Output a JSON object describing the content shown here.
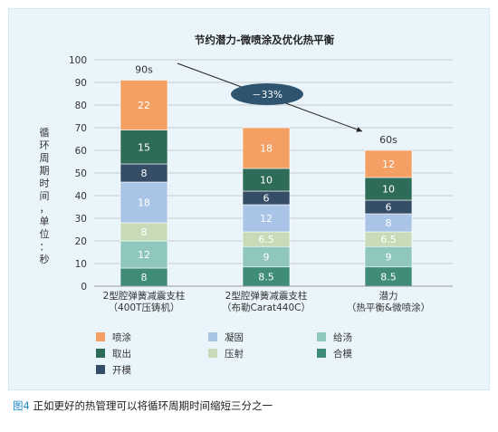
{
  "caption": {
    "fig_label": "图4",
    "text": "正如更好的热管理可以将循环周期时间缩短三分之一"
  },
  "chart_data": {
    "type": "bar",
    "stacked": true,
    "title": "节约潜力-微喷涂及优化热平衡",
    "ylabel": "循环周期时间，单位：秒",
    "ylim": [
      0,
      100
    ],
    "yticks": [
      0,
      10,
      20,
      30,
      40,
      50,
      60,
      70,
      80,
      90,
      100
    ],
    "grid": true,
    "categories": [
      [
        "2型腔弹簧减震支柱",
        "（400T压铸机）"
      ],
      [
        "2型腔弹簧减震支柱",
        "（布勒Carat440C）"
      ],
      [
        "潜力",
        "（热平衡&微喷涂）"
      ]
    ],
    "series": [
      {
        "name": "合模",
        "color": "#3f8c79",
        "values": [
          8,
          8.5,
          8.5
        ],
        "labels": [
          "8",
          "8.5",
          "8.5"
        ]
      },
      {
        "name": "给汤",
        "color": "#8fc7bf",
        "values": [
          12,
          9,
          9
        ],
        "labels": [
          "12",
          "9",
          "9"
        ]
      },
      {
        "name": "压射",
        "color": "#c7dbb8",
        "values": [
          8,
          6.5,
          6.5
        ],
        "labels": [
          "8",
          "6.5",
          "6.5"
        ]
      },
      {
        "name": "凝固",
        "color": "#a9c4e7",
        "values": [
          18,
          12,
          8
        ],
        "labels": [
          "18",
          "12",
          "8"
        ]
      },
      {
        "name": "开模",
        "color": "#354d66",
        "values": [
          8,
          6,
          6
        ],
        "labels": [
          "8",
          "6",
          "6"
        ]
      },
      {
        "name": "取出",
        "color": "#2e6b58",
        "values": [
          15,
          10,
          10
        ],
        "labels": [
          "15",
          "10",
          "10"
        ]
      },
      {
        "name": "喷涂",
        "color": "#f4a064",
        "values": [
          22,
          18,
          12
        ],
        "labels": [
          "22",
          "18",
          "12"
        ]
      }
    ],
    "totals": [
      "90s",
      "",
      "60s"
    ],
    "annotation": {
      "text": "－33%",
      "color": "#2f5470"
    },
    "legend": {
      "placement": "bottom",
      "order": [
        "喷涂",
        "凝固",
        "给汤",
        "取出",
        "压射",
        "合模",
        "开模"
      ]
    }
  }
}
